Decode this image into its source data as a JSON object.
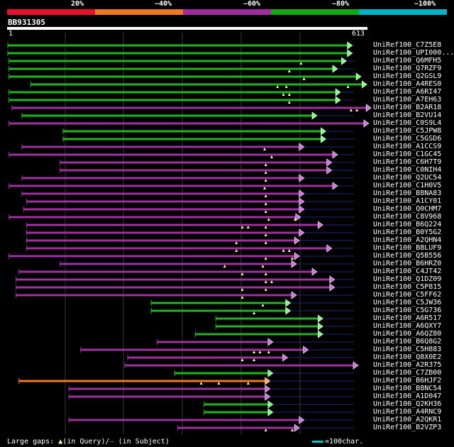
{
  "identity_legend": {
    "labels": [
      "20%",
      "~40%",
      "~60%",
      "~80%",
      "~100%"
    ],
    "colors": [
      "#e8102c",
      "#f07820",
      "#a02ca0",
      "#12a812",
      "#00b4c8"
    ]
  },
  "query": {
    "name": "BB931305",
    "start": "1",
    "end": "613"
  },
  "footer": {
    "large_gaps": "Large gaps:",
    "in_query": "(in Query)/",
    "in_subject": "(in Subject)",
    "scale": "=100char."
  },
  "colors": {
    "background": "#000000",
    "grid": "#3a3a3a",
    "gap_line": "#1a2a7a",
    "triangle": "#ffff99"
  },
  "hits": [
    {
      "label": "UniRef100_C7Z5E8",
      "color": "green",
      "from": 1,
      "to": 580,
      "tail": 590,
      "gaps": []
    },
    {
      "label": "UniRef100_UPI000...",
      "color": "green",
      "from": 1,
      "to": 580,
      "tail": 590,
      "gaps": []
    },
    {
      "label": "UniRef100_Q6MFH5",
      "color": "green",
      "from": 3,
      "to": 570,
      "tail": 590,
      "gaps": [
        500
      ]
    },
    {
      "label": "UniRef100_Q7RZF9",
      "color": "green",
      "from": 3,
      "to": 555,
      "tail": 590,
      "gaps": [
        480
      ]
    },
    {
      "label": "UniRef100_Q2GSL9",
      "color": "green",
      "from": 3,
      "to": 595,
      "tail": 600,
      "gaps": [
        505
      ]
    },
    {
      "label": "UniRef100_A4RES0",
      "color": "green",
      "from": 40,
      "to": 605,
      "tail": 610,
      "gaps": [
        460,
        475,
        580
      ]
    },
    {
      "label": "UniRef100_A6RI47",
      "color": "green",
      "from": 3,
      "to": 560,
      "tail": 590,
      "gaps": [
        470,
        480
      ]
    },
    {
      "label": "UniRef100_A7EH63",
      "color": "green",
      "from": 3,
      "to": 560,
      "tail": 590,
      "gaps": [
        480
      ]
    },
    {
      "label": "UniRef100_B2AR18",
      "color": "purple",
      "from": 8,
      "to": 612,
      "tail": 613,
      "gaps": [
        585,
        595
      ]
    },
    {
      "label": "UniRef100_B2VU14",
      "color": "green",
      "from": 25,
      "to": 520,
      "tail": 590,
      "gaps": []
    },
    {
      "label": "UniRef100_C0S9L4",
      "color": "purple",
      "from": 3,
      "to": 608,
      "tail": 613,
      "gaps": []
    },
    {
      "label": "UniRef100_C5JPW8",
      "color": "green",
      "from": 95,
      "to": 535,
      "tail": 590,
      "gaps": []
    },
    {
      "label": "UniRef100_C5GSD6",
      "color": "green",
      "from": 95,
      "to": 535,
      "tail": 590,
      "gaps": []
    },
    {
      "label": "UniRef100_A1CCS9",
      "color": "purple",
      "from": 25,
      "to": 498,
      "tail": 590,
      "gaps": [
        438
      ]
    },
    {
      "label": "UniRef100_C1GC45",
      "color": "purple",
      "from": 3,
      "to": 555,
      "tail": 590,
      "gaps": [
        450
      ]
    },
    {
      "label": "UniRef100_C6H7T9",
      "color": "purple",
      "from": 90,
      "to": 545,
      "tail": 590,
      "gaps": [
        440
      ]
    },
    {
      "label": "UniRef100_C0NIH4",
      "color": "purple",
      "from": 90,
      "to": 545,
      "tail": 590,
      "gaps": [
        440
      ]
    },
    {
      "label": "UniRef100_Q2UC54",
      "color": "purple",
      "from": 25,
      "to": 498,
      "tail": 590,
      "gaps": [
        440
      ]
    },
    {
      "label": "UniRef100_C1H0V5",
      "color": "purple",
      "from": 3,
      "to": 555,
      "tail": 590,
      "gaps": [
        438
      ]
    },
    {
      "label": "UniRef100_B8NA83",
      "color": "purple",
      "from": 25,
      "to": 498,
      "tail": 590,
      "gaps": [
        440
      ]
    },
    {
      "label": "UniRef100_A1CY01",
      "color": "purple",
      "from": 33,
      "to": 498,
      "tail": 590,
      "gaps": [
        440
      ]
    },
    {
      "label": "UniRef100_Q0CHM7",
      "color": "purple",
      "from": 28,
      "to": 498,
      "tail": 590,
      "gaps": [
        440
      ]
    },
    {
      "label": "UniRef100_C8V968",
      "color": "purple",
      "from": 3,
      "to": 492,
      "tail": 590,
      "gaps": [
        445,
        490
      ]
    },
    {
      "label": "UniRef100_B6Q224",
      "color": "purple",
      "from": 33,
      "to": 530,
      "tail": 590,
      "gaps": [
        400,
        410,
        440
      ]
    },
    {
      "label": "UniRef100_B0Y5G2",
      "color": "purple",
      "from": 33,
      "to": 498,
      "tail": 590,
      "gaps": [
        440
      ]
    },
    {
      "label": "UniRef100_A2QHN4",
      "color": "purple",
      "from": 33,
      "to": 490,
      "tail": 590,
      "gaps": [
        390,
        440
      ]
    },
    {
      "label": "UniRef100_B8LUF9",
      "color": "purple",
      "from": 33,
      "to": 545,
      "tail": 590,
      "gaps": [
        390,
        470,
        480
      ]
    },
    {
      "label": "UniRef100_Q5B556",
      "color": "purple",
      "from": 3,
      "to": 490,
      "tail": 590,
      "gaps": [
        440,
        485
      ]
    },
    {
      "label": "UniRef100_B6HRZ0",
      "color": "purple",
      "from": 90,
      "to": 485,
      "tail": 590,
      "gaps": [
        370,
        435
      ]
    },
    {
      "label": "UniRef100_C4JT42",
      "color": "purple",
      "from": 20,
      "to": 520,
      "tail": 590,
      "gaps": [
        400,
        440
      ]
    },
    {
      "label": "UniRef100_Q1DZ09",
      "color": "purple",
      "from": 15,
      "to": 550,
      "tail": 590,
      "gaps": [
        440,
        450
      ]
    },
    {
      "label": "UniRef100_C5P815",
      "color": "purple",
      "from": 15,
      "to": 550,
      "tail": 590,
      "gaps": [
        400,
        440
      ]
    },
    {
      "label": "UniRef100_C5FF62",
      "color": "purple",
      "from": 15,
      "to": 485,
      "tail": 590,
      "gaps": [
        400
      ]
    },
    {
      "label": "UniRef100_C5JW36",
      "color": "green",
      "from": 245,
      "to": 475,
      "tail": 590,
      "gaps": [
        435
      ]
    },
    {
      "label": "UniRef100_C5G736",
      "color": "green",
      "from": 245,
      "to": 475,
      "tail": 590,
      "gaps": [
        420
      ]
    },
    {
      "label": "UniRef100_A6R517",
      "color": "green",
      "from": 355,
      "to": 530,
      "tail": 590,
      "gaps": []
    },
    {
      "label": "UniRef100_A6QXY7",
      "color": "green",
      "from": 355,
      "to": 530,
      "tail": 590,
      "gaps": []
    },
    {
      "label": "UniRef100_A6QZ80",
      "color": "green",
      "from": 320,
      "to": 530,
      "tail": 590,
      "gaps": []
    },
    {
      "label": "UniRef100_B6Q8G2",
      "color": "purple",
      "from": 255,
      "to": 445,
      "tail": 590,
      "gaps": []
    },
    {
      "label": "UniRef100_C5H883",
      "color": "purple",
      "from": 125,
      "to": 505,
      "tail": 590,
      "gaps": [
        420,
        430,
        445
      ]
    },
    {
      "label": "UniRef100_Q8X0E2",
      "color": "purple",
      "from": 205,
      "to": 470,
      "tail": 590,
      "gaps": [
        400,
        420
      ]
    },
    {
      "label": "UniRef100_A2R375",
      "color": "purple",
      "from": 200,
      "to": 590,
      "tail": 600,
      "gaps": []
    },
    {
      "label": "UniRef100_C7ZB00",
      "color": "green",
      "from": 285,
      "to": 445,
      "tail": 590,
      "gaps": []
    },
    {
      "label": "UniRef100_B6HJF2",
      "color": "orange",
      "from": 20,
      "to": 440,
      "tail": 590,
      "gaps": [
        330,
        360,
        410
      ]
    },
    {
      "label": "UniRef100_B8NC54",
      "color": "purple",
      "from": 105,
      "to": 440,
      "tail": 590,
      "gaps": []
    },
    {
      "label": "UniRef100_A1D047",
      "color": "purple",
      "from": 105,
      "to": 440,
      "tail": 590,
      "gaps": []
    },
    {
      "label": "UniRef100_Q2KH36",
      "color": "green",
      "from": 335,
      "to": 445,
      "tail": 590,
      "gaps": []
    },
    {
      "label": "UniRef100_A4RNC9",
      "color": "green",
      "from": 335,
      "to": 445,
      "tail": 590,
      "gaps": []
    },
    {
      "label": "UniRef100_A2QKR1",
      "color": "purple",
      "from": 105,
      "to": 498,
      "tail": 590,
      "gaps": []
    },
    {
      "label": "UniRef100_B2VZP3",
      "color": "purple",
      "from": 290,
      "to": 490,
      "tail": 590,
      "gaps": [
        440,
        485
      ]
    }
  ]
}
